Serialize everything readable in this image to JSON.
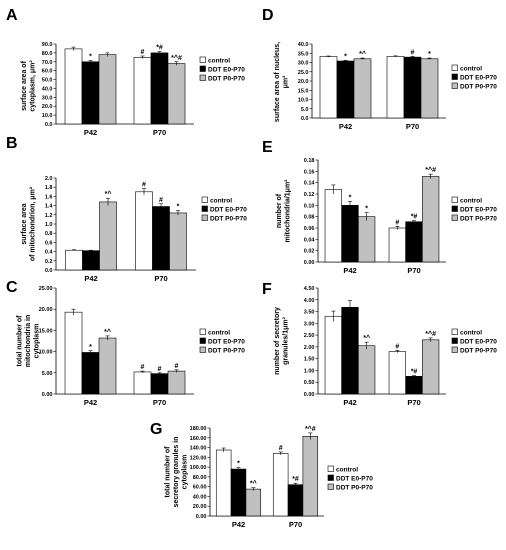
{
  "colors": {
    "control": "#ffffff",
    "e0": "#000000",
    "p0": "#c0c0c0"
  },
  "chart_data": [
    {
      "panel": "A",
      "type": "bar",
      "ylabel": [
        "surface area of",
        "cytoplasm, μm²"
      ],
      "categories": [
        "P42",
        "P70"
      ],
      "ylim": [
        0,
        90
      ],
      "yticks": [
        "0.0",
        "10.0",
        "20.0",
        "30.0",
        "40.0",
        "50.0",
        "60.0",
        "70.0",
        "80.0",
        "90.0"
      ],
      "legend": [
        "control",
        "DDT E0-P70",
        "DDT P0-P70"
      ],
      "series": [
        {
          "name": "control",
          "values": [
            84.5,
            75.0
          ],
          "errors": [
            2.0,
            1.5
          ],
          "annotations": [
            "",
            "#"
          ]
        },
        {
          "name": "DDT E0-P70",
          "values": [
            70.0,
            80.0
          ],
          "errors": [
            1.5,
            1.5
          ],
          "annotations": [
            "*",
            "*#"
          ]
        },
        {
          "name": "DDT P0-P70",
          "values": [
            78.0,
            68.0
          ],
          "errors": [
            2.0,
            2.0
          ],
          "annotations": [
            "",
            "*^#"
          ]
        }
      ]
    },
    {
      "panel": "D",
      "type": "bar",
      "ylabel": [
        "surface area of nucleus,",
        "μm²"
      ],
      "categories": [
        "P42",
        "P70"
      ],
      "ylim": [
        0,
        40
      ],
      "yticks": [
        "0.0",
        "5.0",
        "10.0",
        "15.0",
        "20.0",
        "25.0",
        "30.0",
        "35.0",
        "40.0"
      ],
      "legend": [
        "control",
        "DDT E0-P70",
        "DDT P0-P70"
      ],
      "series": [
        {
          "name": "control",
          "values": [
            33.2,
            33.3
          ],
          "errors": [
            0.3,
            0.3
          ],
          "annotations": [
            "",
            ""
          ]
        },
        {
          "name": "DDT E0-P70",
          "values": [
            30.8,
            32.9
          ],
          "errors": [
            0.4,
            0.4
          ],
          "annotations": [
            "*",
            "#"
          ]
        },
        {
          "name": "DDT P0-P70",
          "values": [
            32.0,
            32.0
          ],
          "errors": [
            0.4,
            0.4
          ],
          "annotations": [
            "*^",
            "*"
          ]
        }
      ]
    },
    {
      "panel": "B",
      "type": "bar",
      "ylabel": [
        "surface area",
        "of mitochondrion, μm²"
      ],
      "categories": [
        "P42",
        "P70"
      ],
      "ylim": [
        0,
        2
      ],
      "yticks": [
        "0.0",
        "0.2",
        "0.4",
        "0.6",
        "0.8",
        "1.0",
        "1.2",
        "1.4",
        "1.6",
        "1.8",
        "2.0"
      ],
      "legend": [
        "control",
        "DDT E0-P70",
        "DDT P0-P70"
      ],
      "series": [
        {
          "name": "control",
          "values": [
            0.43,
            1.7
          ],
          "errors": [
            0.01,
            0.07
          ],
          "annotations": [
            "",
            "#"
          ]
        },
        {
          "name": "DDT E0-P70",
          "values": [
            0.42,
            1.38
          ],
          "errors": [
            0.01,
            0.06
          ],
          "annotations": [
            "",
            "#"
          ]
        },
        {
          "name": "DDT P0-P70",
          "values": [
            1.48,
            1.24
          ],
          "errors": [
            0.08,
            0.05
          ],
          "annotations": [
            "*^",
            "*"
          ]
        }
      ]
    },
    {
      "panel": "E",
      "type": "bar",
      "ylabel": [
        "number of",
        "mitochondria/1μm²"
      ],
      "categories": [
        "P42",
        "P70"
      ],
      "ylim": [
        0,
        0.18
      ],
      "yticks": [
        "0.00",
        "0.02",
        "0.04",
        "0.06",
        "0.08",
        "0.10",
        "0.12",
        "0.14",
        "0.16",
        "0.18"
      ],
      "legend": [
        "control",
        "DDT E0-P70",
        "DDT P0-P70"
      ],
      "series": [
        {
          "name": "control",
          "values": [
            0.128,
            0.06
          ],
          "errors": [
            0.008,
            0.003
          ],
          "annotations": [
            "",
            "#"
          ]
        },
        {
          "name": "DDT E0-P70",
          "values": [
            0.1,
            0.071
          ],
          "errors": [
            0.007,
            0.002
          ],
          "annotations": [
            "*",
            "*#"
          ]
        },
        {
          "name": "DDT P0-P70",
          "values": [
            0.08,
            0.151
          ],
          "errors": [
            0.007,
            0.004
          ],
          "annotations": [
            "*",
            "*^#"
          ]
        }
      ]
    },
    {
      "panel": "C",
      "type": "bar",
      "ylabel": [
        "total number of",
        "mitochondria in",
        "cytoplasm"
      ],
      "categories": [
        "P42",
        "P70"
      ],
      "ylim": [
        0,
        25
      ],
      "yticks": [
        "0.00",
        "5.00",
        "10.00",
        "15.00",
        "20.00",
        "25.00"
      ],
      "legend": [
        "control",
        "DDT E0-P70",
        "DDT P0-P70"
      ],
      "series": [
        {
          "name": "control",
          "values": [
            19.3,
            5.2
          ],
          "errors": [
            0.7,
            0.2
          ],
          "annotations": [
            "",
            "#"
          ]
        },
        {
          "name": "DDT E0-P70",
          "values": [
            9.8,
            4.8
          ],
          "errors": [
            0.4,
            0.2
          ],
          "annotations": [
            "*",
            "#"
          ]
        },
        {
          "name": "DDT P0-P70",
          "values": [
            13.2,
            5.4
          ],
          "errors": [
            0.5,
            0.3
          ],
          "annotations": [
            "*^",
            "#"
          ]
        }
      ]
    },
    {
      "panel": "F",
      "type": "bar",
      "ylabel": [
        "number of secretory",
        "granules/1μm²"
      ],
      "categories": [
        "P42",
        "P70"
      ],
      "ylim": [
        0,
        4.5
      ],
      "yticks": [
        "0.00",
        "0.50",
        "1.00",
        "1.50",
        "2.00",
        "2.50",
        "3.00",
        "3.50",
        "4.00",
        "4.50"
      ],
      "legend": [
        "control",
        "DDT E0-P70",
        "DDT P0-P70"
      ],
      "series": [
        {
          "name": "control",
          "values": [
            3.3,
            1.8
          ],
          "errors": [
            0.22,
            0.05
          ],
          "annotations": [
            "",
            "#"
          ]
        },
        {
          "name": "DDT E0-P70",
          "values": [
            3.68,
            0.75
          ],
          "errors": [
            0.28,
            0.03
          ],
          "annotations": [
            "",
            "*#"
          ]
        },
        {
          "name": "DDT P0-P70",
          "values": [
            2.05,
            2.3
          ],
          "errors": [
            0.15,
            0.08
          ],
          "annotations": [
            "*^",
            "*^#"
          ]
        }
      ]
    },
    {
      "panel": "G",
      "type": "bar",
      "ylabel": [
        "total number of",
        "secretory granules in",
        "cytoplasm"
      ],
      "categories": [
        "P42",
        "P70"
      ],
      "ylim": [
        0,
        180
      ],
      "yticks": [
        "0.00",
        "20.00",
        "40.00",
        "60.00",
        "80.00",
        "100.00",
        "120.00",
        "140.00",
        "160.00",
        "180.00"
      ],
      "legend": [
        "control",
        "DDT E0-P70",
        "DDT P0-P70"
      ],
      "series": [
        {
          "name": "control",
          "values": [
            135,
            128
          ],
          "errors": [
            4,
            3
          ],
          "annotations": [
            "",
            "#"
          ]
        },
        {
          "name": "DDT E0-P70",
          "values": [
            96,
            64
          ],
          "errors": [
            3,
            3
          ],
          "annotations": [
            "*",
            "*#"
          ]
        },
        {
          "name": "DDT P0-P70",
          "values": [
            55,
            163
          ],
          "errors": [
            3,
            7
          ],
          "annotations": [
            "*^",
            "*^#"
          ]
        }
      ]
    }
  ]
}
